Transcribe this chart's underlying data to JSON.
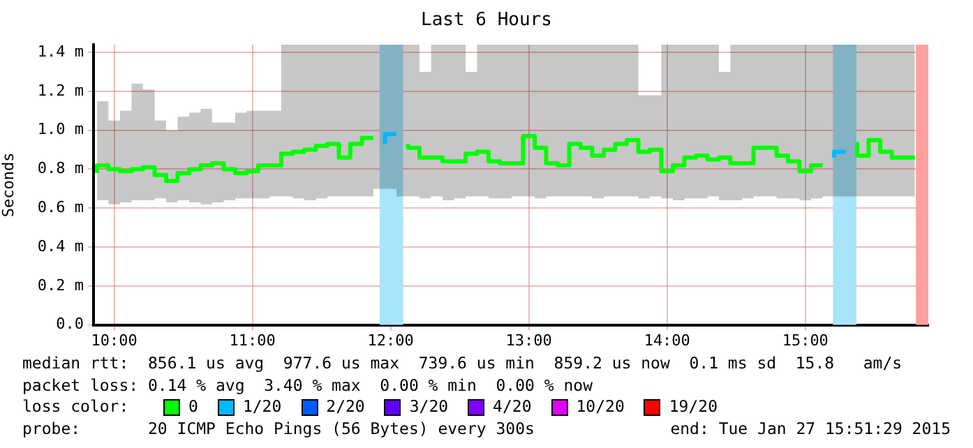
{
  "chart_data": {
    "type": "step",
    "title": "Last 6 Hours",
    "ylabel": "Seconds",
    "x": [
      9.875,
      9.958,
      10.042,
      10.125,
      10.208,
      10.292,
      10.375,
      10.458,
      10.542,
      10.625,
      10.708,
      10.792,
      10.875,
      10.958,
      11.042,
      11.125,
      11.208,
      11.292,
      11.375,
      11.458,
      11.542,
      11.625,
      11.708,
      11.792,
      11.875,
      11.958,
      12.042,
      12.125,
      12.208,
      12.292,
      12.375,
      12.458,
      12.542,
      12.625,
      12.708,
      12.792,
      12.875,
      12.958,
      13.042,
      13.125,
      13.208,
      13.292,
      13.375,
      13.458,
      13.542,
      13.625,
      13.708,
      13.792,
      13.875,
      13.958,
      14.042,
      14.125,
      14.208,
      14.292,
      14.375,
      14.458,
      14.542,
      14.625,
      14.708,
      14.792,
      14.875,
      14.958,
      15.042,
      15.125,
      15.208,
      15.292,
      15.375,
      15.458,
      15.542,
      15.625,
      15.708,
      15.792
    ],
    "series": [
      {
        "name": "0",
        "color": "#00ff00",
        "values": [
          0.78,
          0.82,
          0.8,
          0.79,
          0.8,
          0.81,
          0.77,
          0.74,
          0.78,
          0.8,
          0.82,
          0.83,
          0.8,
          0.78,
          0.79,
          0.82,
          0.82,
          0.88,
          0.89,
          0.9,
          0.92,
          0.93,
          0.86,
          0.93,
          0.96,
          null,
          null,
          0.93,
          0.91,
          0.86,
          0.86,
          0.84,
          0.84,
          0.88,
          0.89,
          0.84,
          0.83,
          0.83,
          0.97,
          0.91,
          0.83,
          0.82,
          0.93,
          0.91,
          0.87,
          0.9,
          0.93,
          0.95,
          0.89,
          0.9,
          0.79,
          0.82,
          0.86,
          0.87,
          0.85,
          0.86,
          0.83,
          0.83,
          0.91,
          0.91,
          0.87,
          0.84,
          0.79,
          0.82,
          null,
          null,
          0.94,
          0.87,
          0.95,
          0.89,
          0.86,
          0.86
        ],
        "lower": [
          0.65,
          0.64,
          0.62,
          0.63,
          0.64,
          0.64,
          0.65,
          0.63,
          0.64,
          0.63,
          0.62,
          0.63,
          0.64,
          0.65,
          0.65,
          0.65,
          0.66,
          0.66,
          0.65,
          0.64,
          0.65,
          0.66,
          0.66,
          0.66,
          0.66,
          0.7,
          0.7,
          0.66,
          0.66,
          0.65,
          0.66,
          0.64,
          0.65,
          0.66,
          0.66,
          0.65,
          0.65,
          0.66,
          0.66,
          0.65,
          0.66,
          0.66,
          0.66,
          0.66,
          0.65,
          0.66,
          0.66,
          0.66,
          0.65,
          0.66,
          0.65,
          0.64,
          0.65,
          0.65,
          0.66,
          0.64,
          0.64,
          0.65,
          0.66,
          0.66,
          0.65,
          0.65,
          0.64,
          0.65,
          0.66,
          0.66,
          0.66,
          0.66,
          0.66,
          0.66,
          0.66,
          0.66
        ],
        "upper": [
          1.15,
          1.15,
          1.05,
          1.1,
          1.24,
          1.21,
          1.05,
          1.0,
          1.07,
          1.09,
          1.11,
          1.04,
          1.04,
          1.09,
          1.1,
          1.1,
          1.1,
          1.44,
          1.44,
          1.44,
          1.44,
          1.44,
          1.44,
          1.44,
          1.44,
          1.44,
          1.44,
          1.44,
          1.44,
          1.3,
          1.44,
          1.44,
          1.44,
          1.3,
          1.44,
          1.44,
          1.44,
          1.44,
          1.44,
          1.44,
          1.44,
          1.44,
          1.44,
          1.44,
          1.44,
          1.44,
          1.44,
          1.44,
          1.18,
          1.18,
          1.44,
          1.44,
          1.44,
          1.44,
          1.44,
          1.3,
          1.44,
          1.44,
          1.44,
          1.44,
          1.44,
          1.44,
          1.44,
          1.44,
          1.44,
          1.44,
          1.44,
          1.44,
          1.44,
          1.44,
          1.44,
          1.44
        ]
      },
      {
        "name": "1/20",
        "color": "#00b8ff",
        "values": [
          null,
          null,
          null,
          null,
          null,
          null,
          null,
          null,
          null,
          null,
          null,
          null,
          null,
          null,
          null,
          null,
          null,
          null,
          null,
          null,
          null,
          null,
          null,
          null,
          null,
          0.93,
          0.98,
          null,
          null,
          null,
          null,
          null,
          null,
          null,
          null,
          null,
          null,
          null,
          null,
          null,
          null,
          null,
          null,
          null,
          null,
          null,
          null,
          null,
          null,
          null,
          null,
          null,
          null,
          null,
          null,
          null,
          null,
          null,
          null,
          null,
          null,
          null,
          null,
          null,
          0.86,
          0.89,
          null,
          null,
          null,
          null,
          null,
          null
        ]
      },
      {
        "name": "2/20",
        "color": "#0059ff",
        "values": [
          null,
          null,
          null,
          null,
          null,
          null,
          null,
          null,
          null,
          null,
          null,
          null,
          null,
          null,
          null,
          null,
          null,
          null,
          null,
          null,
          null,
          null,
          null,
          null,
          null,
          null,
          null,
          null,
          null,
          null,
          null,
          null,
          null,
          null,
          null,
          null,
          null,
          null,
          null,
          null,
          null,
          null,
          null,
          null,
          null,
          null,
          null,
          null,
          null,
          null,
          null,
          null,
          null,
          null,
          null,
          null,
          null,
          null,
          null,
          null,
          null,
          null,
          null,
          null,
          null,
          null,
          null,
          null,
          null,
          null,
          null,
          null
        ]
      },
      {
        "name": "3/20",
        "color": "#5e00ff",
        "values": [
          null,
          null,
          null,
          null,
          null,
          null,
          null,
          null,
          null,
          null,
          null,
          null,
          null,
          null,
          null,
          null,
          null,
          null,
          null,
          null,
          null,
          null,
          null,
          null,
          null,
          null,
          null,
          null,
          null,
          null,
          null,
          null,
          null,
          null,
          null,
          null,
          null,
          null,
          null,
          null,
          null,
          null,
          null,
          null,
          null,
          null,
          null,
          null,
          null,
          null,
          null,
          null,
          null,
          null,
          null,
          null,
          null,
          null,
          null,
          null,
          null,
          null,
          null,
          null,
          null,
          null,
          null,
          null,
          null,
          null,
          null,
          null
        ]
      },
      {
        "name": "4/20",
        "color": "#7e00ff",
        "values": [
          null,
          null,
          null,
          null,
          null,
          null,
          null,
          null,
          null,
          null,
          null,
          null,
          null,
          null,
          null,
          null,
          null,
          null,
          null,
          null,
          null,
          null,
          null,
          null,
          null,
          null,
          null,
          null,
          null,
          null,
          null,
          null,
          null,
          null,
          null,
          null,
          null,
          null,
          null,
          null,
          null,
          null,
          null,
          null,
          null,
          null,
          null,
          null,
          null,
          null,
          null,
          null,
          null,
          null,
          null,
          null,
          null,
          null,
          null,
          null,
          null,
          null,
          null,
          null,
          null,
          null,
          null,
          null,
          null,
          null,
          null,
          null
        ]
      },
      {
        "name": "10/20",
        "color": "#dd00ff",
        "values": [
          null,
          null,
          null,
          null,
          null,
          null,
          null,
          null,
          null,
          null,
          null,
          null,
          null,
          null,
          null,
          null,
          null,
          null,
          null,
          null,
          null,
          null,
          null,
          null,
          null,
          null,
          null,
          null,
          null,
          null,
          null,
          null,
          null,
          null,
          null,
          null,
          null,
          null,
          null,
          null,
          null,
          null,
          null,
          null,
          null,
          null,
          null,
          null,
          null,
          null,
          null,
          null,
          null,
          null,
          null,
          null,
          null,
          null,
          null,
          null,
          null,
          null,
          null,
          null,
          null,
          null,
          null,
          null,
          null,
          null,
          null,
          null
        ]
      },
      {
        "name": "19/20",
        "color": "#ff0000",
        "values": [
          null,
          null,
          null,
          null,
          null,
          null,
          null,
          null,
          null,
          null,
          null,
          null,
          null,
          null,
          null,
          null,
          null,
          null,
          null,
          null,
          null,
          null,
          null,
          null,
          null,
          null,
          null,
          null,
          null,
          null,
          null,
          null,
          null,
          null,
          null,
          null,
          null,
          null,
          null,
          null,
          null,
          null,
          null,
          null,
          null,
          null,
          null,
          null,
          null,
          null,
          null,
          null,
          null,
          null,
          null,
          null,
          null,
          null,
          null,
          null,
          null,
          null,
          null,
          null,
          null,
          null,
          null,
          null,
          null,
          null,
          null,
          null
        ]
      }
    ],
    "legend_title": "loss color:",
    "legend": "bottom",
    "bands": [
      {
        "axis": "x",
        "from": 11.92,
        "to": 12.09,
        "color": "#a8e4fc"
      },
      {
        "axis": "x",
        "from": 15.2,
        "to": 15.37,
        "color": "#a8e4fc"
      },
      {
        "axis": "x",
        "from": 15.8,
        "to": 15.89,
        "color": "#ffa0a0"
      }
    ],
    "xlim": [
      9.85,
      15.89
    ],
    "xticks": [
      {
        "value": 10,
        "label": "10:00"
      },
      {
        "value": 11,
        "label": "11:00"
      },
      {
        "value": 12,
        "label": "12:00"
      },
      {
        "value": 13,
        "label": "13:00"
      },
      {
        "value": 14,
        "label": "14:00"
      },
      {
        "value": 15,
        "label": "15:00"
      }
    ],
    "ylim": [
      0,
      1.44
    ],
    "yticks": [
      {
        "value": 0,
        "label": "0.0"
      },
      {
        "value": 0.2,
        "label": "0.2 m"
      },
      {
        "value": 0.4,
        "label": "0.4 m"
      },
      {
        "value": 0.6,
        "label": "0.6 m"
      },
      {
        "value": 0.8,
        "label": "0.8 m"
      },
      {
        "value": 1.0,
        "label": "1.0 m"
      },
      {
        "value": 1.2,
        "label": "1.2 m"
      },
      {
        "value": 1.4,
        "label": "1.4 m"
      }
    ],
    "grid": true,
    "annotations": [
      "median rtt:  856.1 us avg  977.6 us max  739.6 us min  859.2 us now  0.1 ms sd  15.8   am/s",
      "packet loss: 0.14 % avg  3.40 % max  0.00 % min  0.00 % now",
      "probe:       20 ICMP Echo Pings (56 Bytes) every 300s",
      "end: Tue Jan 27 15:51:29 2015"
    ]
  }
}
